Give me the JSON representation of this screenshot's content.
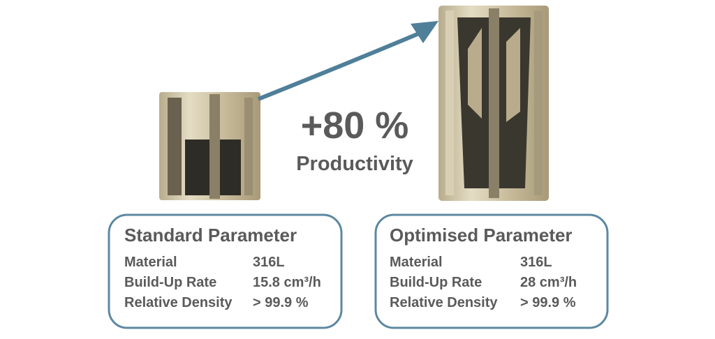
{
  "headline": {
    "value": "+80 %",
    "caption": "Productivity"
  },
  "panels": [
    {
      "title": "Standard Parameter",
      "rows": [
        [
          "Material",
          "316L"
        ],
        [
          "Build-Up Rate",
          "15.8 cm³/h"
        ],
        [
          "Relative Density",
          "> 99.9 %"
        ]
      ]
    },
    {
      "title": "Optimised Parameter",
      "rows": [
        [
          "Material",
          "316L"
        ],
        [
          "Build-Up Rate",
          "28 cm³/h"
        ],
        [
          "Relative Density",
          "> 99.9 %"
        ]
      ]
    }
  ]
}
